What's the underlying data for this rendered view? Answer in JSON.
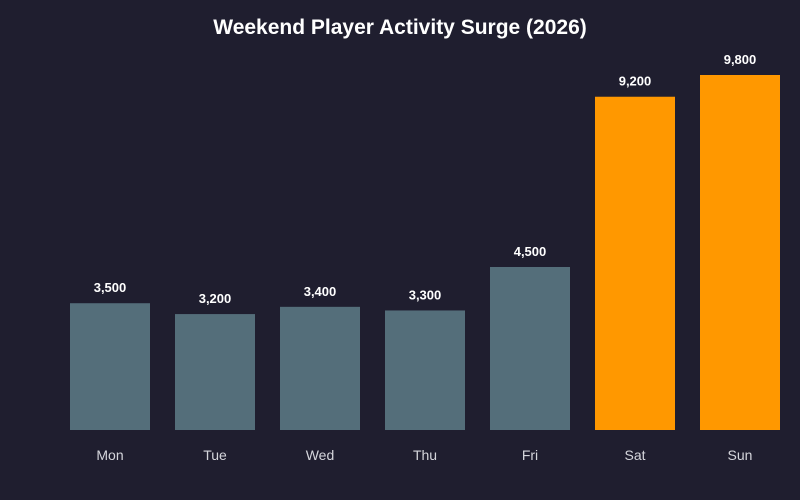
{
  "chart_data": {
    "type": "bar",
    "title": "Weekend Player Activity Surge (2026)",
    "xlabel": "",
    "ylabel": "",
    "categories": [
      "Mon",
      "Tue",
      "Wed",
      "Thu",
      "Fri",
      "Sat",
      "Sun"
    ],
    "values": [
      3500,
      3200,
      3400,
      3300,
      4500,
      9200,
      9800
    ],
    "data_labels": [
      "3,500",
      "3,200",
      "3,400",
      "3,300",
      "4,500",
      "9,200",
      "9,800"
    ],
    "ylim": [
      0,
      9800
    ],
    "grid": false,
    "legend": "none",
    "colors": {
      "weekday": "#546e7a",
      "weekend": "#ff9800",
      "background": "#1f1e2f",
      "title": "#ffffff",
      "data_label": "#ffffff",
      "tick_label": "#d5d6dc"
    },
    "bar_color_keys": [
      "weekday",
      "weekday",
      "weekday",
      "weekday",
      "weekday",
      "weekend",
      "weekend"
    ]
  }
}
